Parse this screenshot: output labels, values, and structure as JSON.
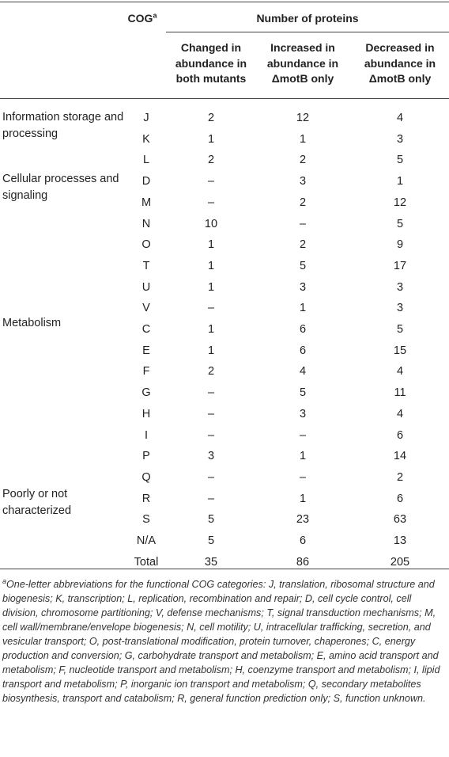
{
  "header": {
    "cog_label": "COG",
    "cog_sup": "a",
    "group_label": "Number of proteins",
    "col_changed": "Changed in abundance in both mutants",
    "col_increased_prefix": "Increased in abundance in",
    "col_increased_mutant": "ΔmotB only",
    "col_decreased_prefix": "Decreased in abundance in",
    "col_decreased_mutant": "ΔmotB only"
  },
  "groups": [
    "Information storage and processing",
    "Cellular processes and signaling",
    "Metabolism",
    "Poorly or not characterized"
  ],
  "rows": [
    {
      "cog": "J",
      "changed": "2",
      "increased": "12",
      "decreased": "4"
    },
    {
      "cog": "K",
      "changed": "1",
      "increased": "1",
      "decreased": "3"
    },
    {
      "cog": "L",
      "changed": "2",
      "increased": "2",
      "decreased": "5"
    },
    {
      "cog": "D",
      "changed": "–",
      "increased": "3",
      "decreased": "1"
    },
    {
      "cog": "M",
      "changed": "–",
      "increased": "2",
      "decreased": "12"
    },
    {
      "cog": "N",
      "changed": "10",
      "increased": "–",
      "decreased": "5"
    },
    {
      "cog": "O",
      "changed": "1",
      "increased": "2",
      "decreased": "9"
    },
    {
      "cog": "T",
      "changed": "1",
      "increased": "5",
      "decreased": "17"
    },
    {
      "cog": "U",
      "changed": "1",
      "increased": "3",
      "decreased": "3"
    },
    {
      "cog": "V",
      "changed": "–",
      "increased": "1",
      "decreased": "3"
    },
    {
      "cog": "C",
      "changed": "1",
      "increased": "6",
      "decreased": "5"
    },
    {
      "cog": "E",
      "changed": "1",
      "increased": "6",
      "decreased": "15"
    },
    {
      "cog": "F",
      "changed": "2",
      "increased": "4",
      "decreased": "4"
    },
    {
      "cog": "G",
      "changed": "–",
      "increased": "5",
      "decreased": "11"
    },
    {
      "cog": "H",
      "changed": "–",
      "increased": "3",
      "decreased": "4"
    },
    {
      "cog": "I",
      "changed": "–",
      "increased": "–",
      "decreased": "6"
    },
    {
      "cog": "P",
      "changed": "3",
      "increased": "1",
      "decreased": "14"
    },
    {
      "cog": "Q",
      "changed": "–",
      "increased": "–",
      "decreased": "2"
    },
    {
      "cog": "R",
      "changed": "–",
      "increased": "1",
      "decreased": "6"
    },
    {
      "cog": "S",
      "changed": "5",
      "increased": "23",
      "decreased": "63"
    },
    {
      "cog": "N/A",
      "changed": "5",
      "increased": "6",
      "decreased": "13"
    },
    {
      "cog": "Total",
      "changed": "35",
      "increased": "86",
      "decreased": "205"
    }
  ],
  "footnote": {
    "marker": "a",
    "text": "One-letter abbreviations for the functional COG categories: J, translation, ribosomal structure and biogenesis; K, transcription; L, replication, recombination and repair; D, cell cycle control, cell division, chromosome partitioning; V, defense mechanisms; T, signal transduction mechanisms; M, cell wall/membrane/envelope biogenesis; N, cell motility; U, intracellular trafficking, secretion, and vesicular transport; O, post-translational modification, protein turnover, chaperones; C, energy production and conversion; G, carbohydrate transport and metabolism; E, amino acid transport and metabolism; F, nucleotide transport and metabolism; H, coenzyme transport and metabolism; I, lipid transport and metabolism; P, inorganic ion transport and metabolism; Q, secondary metabolites biosynthesis, transport and catabolism; R, general function prediction only; S, function unknown."
  }
}
